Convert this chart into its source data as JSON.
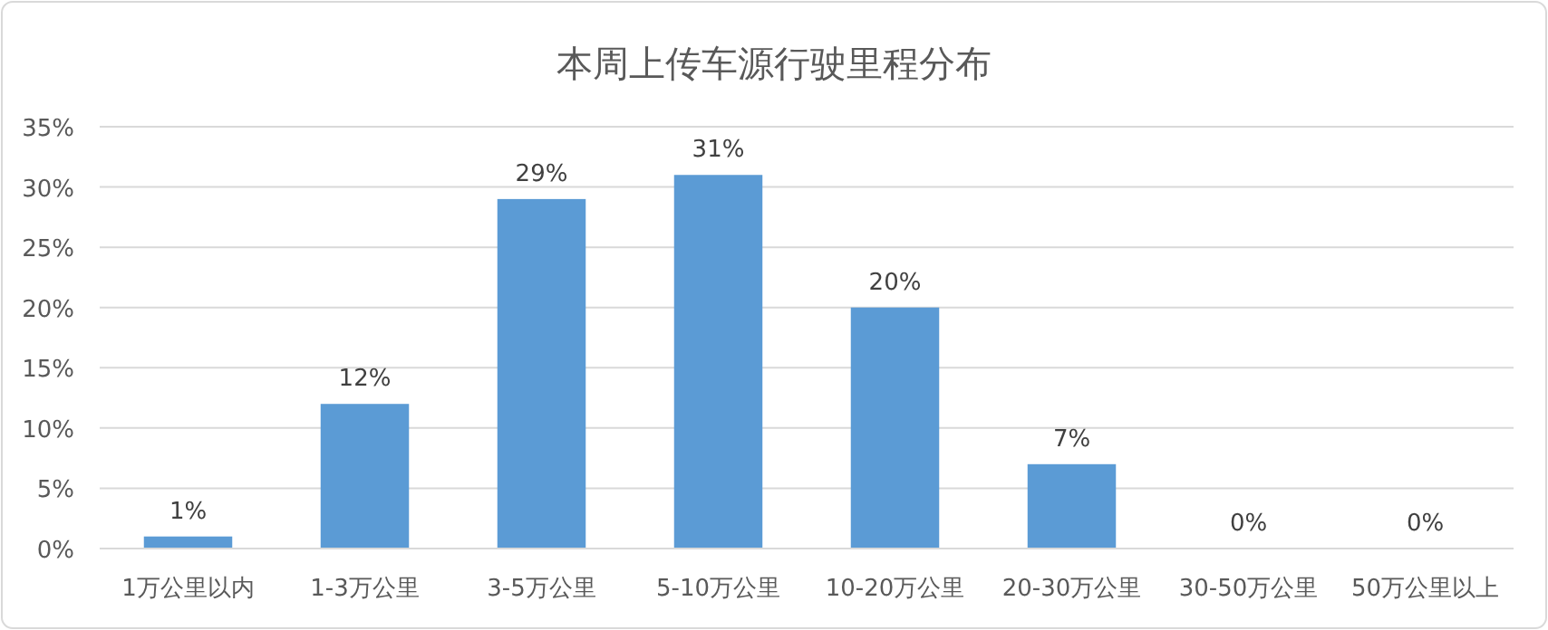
{
  "chart_data": {
    "type": "bar",
    "title": "本周上传车源行驶里程分布",
    "categories": [
      "1万公里以内",
      "1-3万公里",
      "3-5万公里",
      "5-10万公里",
      "10-20万公里",
      "20-30万公里",
      "30-50万公里",
      "50万公里以上"
    ],
    "values": [
      1,
      12,
      29,
      31,
      20,
      7,
      0,
      0
    ],
    "value_labels": [
      "1%",
      "12%",
      "29%",
      "31%",
      "20%",
      "7%",
      "0%",
      "0%"
    ],
    "color": "#5b9bd5",
    "ylim": [
      0,
      35
    ],
    "yticks": [
      {
        "value": 0,
        "label": "0%"
      },
      {
        "value": 5,
        "label": "5%"
      },
      {
        "value": 10,
        "label": "10%"
      },
      {
        "value": 15,
        "label": "15%"
      },
      {
        "value": 20,
        "label": "20%"
      },
      {
        "value": 25,
        "label": "25%"
      },
      {
        "value": 30,
        "label": "30%"
      },
      {
        "value": 35,
        "label": "35%"
      }
    ],
    "grid": "y",
    "legend": false
  }
}
